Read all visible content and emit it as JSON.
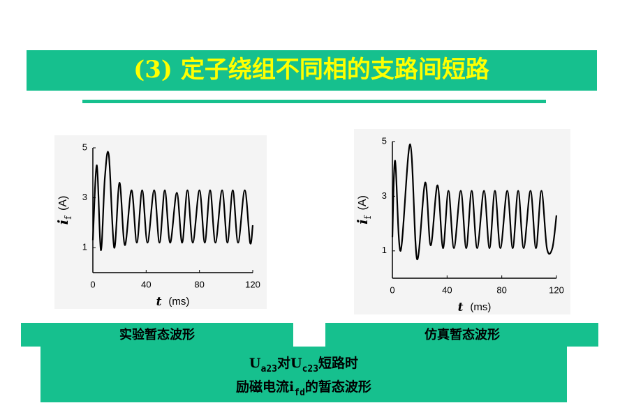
{
  "title": "(3)  定子绕组不同相的支路间短路",
  "chart_data": [
    {
      "type": "line",
      "caption": "实验暂态波形",
      "y_label": {
        "var": "i",
        "sub": "f",
        "unit": "(A)"
      },
      "x_label": {
        "var": "t",
        "unit": "(ms)"
      },
      "x": [
        0,
        3,
        6,
        9,
        12,
        16,
        20,
        24,
        29,
        33,
        37,
        41,
        46,
        50,
        54,
        58,
        63,
        67,
        71,
        75,
        80,
        84,
        88,
        92,
        97,
        101,
        105,
        109,
        114,
        118,
        120
      ],
      "series": [
        {
          "color": "#000000",
          "values": [
            1.3,
            4.3,
            0.9,
            3.8,
            4.7,
            1.0,
            3.6,
            1.1,
            3.3,
            1.2,
            3.3,
            1.2,
            3.3,
            1.2,
            3.3,
            1.2,
            3.2,
            1.2,
            3.3,
            1.2,
            3.3,
            1.2,
            3.3,
            1.2,
            3.3,
            1.2,
            3.3,
            1.2,
            3.3,
            1.2,
            1.9
          ]
        }
      ],
      "xlim": [
        0,
        120
      ],
      "xticks": [
        0,
        40,
        80,
        120
      ],
      "ylim": [
        0,
        5
      ],
      "yticks": [
        1,
        3,
        5
      ]
    },
    {
      "type": "line",
      "caption": "仿真暂态波形",
      "y_label": {
        "var": "i",
        "sub": "f",
        "unit": "(A)"
      },
      "x_label": {
        "var": "t",
        "unit": "(ms)"
      },
      "x": [
        0,
        2,
        6,
        13,
        18,
        24,
        28,
        33,
        37,
        41,
        45,
        50,
        54,
        58,
        62,
        67,
        71,
        75,
        79,
        84,
        88,
        92,
        96,
        101,
        105,
        109,
        113,
        117,
        120
      ],
      "series": [
        {
          "color": "#000000",
          "values": [
            1.5,
            4.3,
            1.0,
            4.9,
            0.7,
            3.5,
            1.2,
            3.4,
            1.1,
            3.2,
            1.1,
            3.2,
            1.1,
            3.2,
            1.1,
            3.2,
            1.1,
            3.2,
            1.1,
            3.2,
            1.1,
            3.2,
            1.1,
            3.2,
            1.1,
            3.2,
            1.1,
            1.1,
            2.3
          ]
        }
      ],
      "xlim": [
        0,
        120
      ],
      "xticks": [
        0,
        40,
        80,
        120
      ],
      "ylim": [
        0,
        5
      ],
      "yticks": [
        1,
        3,
        5
      ]
    }
  ],
  "summary": {
    "line1": [
      "U",
      "a23",
      "对U",
      "c23",
      "短路时"
    ],
    "line2": [
      "励磁电流i",
      "fd",
      "的暂态波形"
    ]
  }
}
